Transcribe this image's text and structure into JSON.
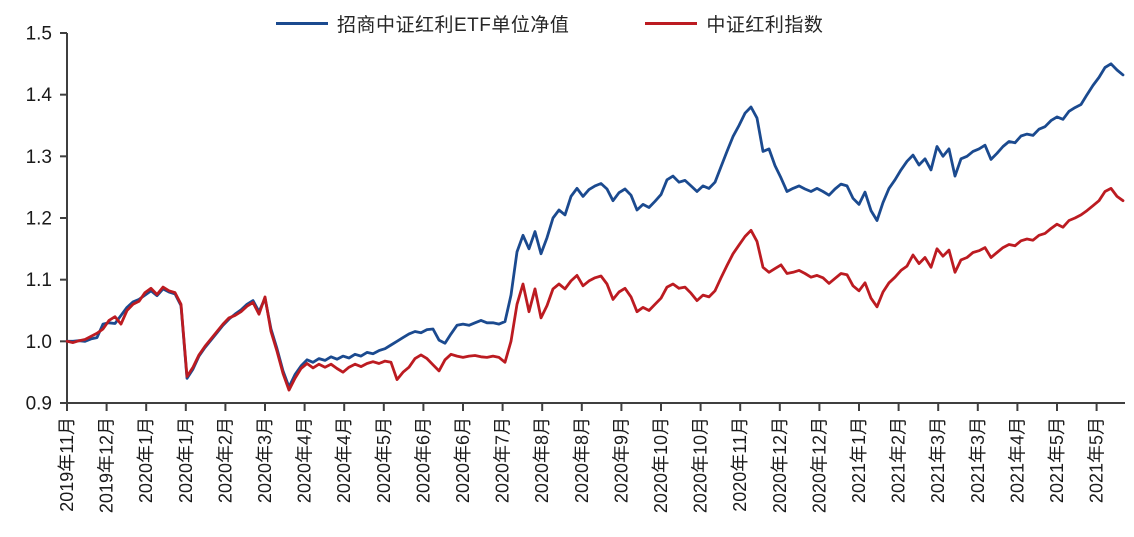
{
  "chart_data": {
    "type": "line",
    "title": "",
    "grid": false,
    "legend_position": "top-center",
    "axis_color": "#3f3f3f",
    "label_color": "#1a1a1a",
    "background": "#ffffff",
    "legend": [
      {
        "label": "招商中证红利ETF单位净值",
        "color": "#1b4a8f"
      },
      {
        "label": "中证红利指数",
        "color": "#bc1b21"
      }
    ],
    "y_axis": {
      "min": 0.9,
      "max": 1.5,
      "tick_labels": [
        "1.5",
        "1.4",
        "1.3",
        "1.2",
        "1.1",
        "1.0",
        "0.9"
      ],
      "tick_values": [
        1.5,
        1.4,
        1.3,
        1.2,
        1.1,
        1.0,
        0.9
      ]
    },
    "x_axis": {
      "tick_labels": [
        "2019年11月",
        "2019年12月",
        "2020年1月",
        "2020年1月",
        "2020年2月",
        "2020年3月",
        "2020年4月",
        "2020年4月",
        "2020年5月",
        "2020年6月",
        "2020年6月",
        "2020年7月",
        "2020年8月",
        "2020年8月",
        "2020年9月",
        "2020年10月",
        "2020年10月",
        "2020年11月",
        "2020年12月",
        "2020年12月",
        "2021年1月",
        "2021年2月",
        "2021年3月",
        "2021年3月",
        "2021年4月",
        "2021年5月",
        "2021年5月"
      ]
    },
    "series": [
      {
        "name": "招商中证红利ETF单位净值",
        "color": "#1b4a8f",
        "values": [
          1.0,
          1.0,
          1.001,
          1.0,
          1.004,
          1.006,
          1.028,
          1.03,
          1.029,
          1.042,
          1.055,
          1.064,
          1.068,
          1.075,
          1.082,
          1.074,
          1.085,
          1.08,
          1.077,
          1.058,
          0.94,
          0.955,
          0.976,
          0.99,
          1.002,
          1.014,
          1.026,
          1.036,
          1.044,
          1.051,
          1.06,
          1.066,
          1.048,
          1.07,
          1.02,
          0.988,
          0.952,
          0.926,
          0.946,
          0.96,
          0.97,
          0.966,
          0.972,
          0.969,
          0.975,
          0.971,
          0.976,
          0.973,
          0.979,
          0.976,
          0.982,
          0.98,
          0.985,
          0.988,
          0.994,
          1.0,
          1.006,
          1.012,
          1.016,
          1.014,
          1.019,
          1.02,
          1.002,
          0.997,
          1.012,
          1.026,
          1.028,
          1.026,
          1.03,
          1.034,
          1.03,
          1.03,
          1.028,
          1.032,
          1.075,
          1.145,
          1.172,
          1.15,
          1.178,
          1.142,
          1.168,
          1.2,
          1.213,
          1.205,
          1.235,
          1.248,
          1.235,
          1.246,
          1.252,
          1.256,
          1.247,
          1.228,
          1.241,
          1.247,
          1.237,
          1.213,
          1.222,
          1.217,
          1.227,
          1.238,
          1.262,
          1.268,
          1.258,
          1.261,
          1.252,
          1.243,
          1.252,
          1.248,
          1.258,
          1.283,
          1.308,
          1.332,
          1.35,
          1.37,
          1.38,
          1.362,
          1.308,
          1.312,
          1.285,
          1.265,
          1.243,
          1.248,
          1.252,
          1.247,
          1.243,
          1.248,
          1.243,
          1.237,
          1.247,
          1.255,
          1.252,
          1.232,
          1.222,
          1.242,
          1.212,
          1.196,
          1.225,
          1.248,
          1.262,
          1.278,
          1.292,
          1.302,
          1.286,
          1.296,
          1.278,
          1.316,
          1.3,
          1.312,
          1.268,
          1.296,
          1.3,
          1.308,
          1.312,
          1.318,
          1.295,
          1.305,
          1.316,
          1.324,
          1.322,
          1.333,
          1.336,
          1.334,
          1.344,
          1.348,
          1.358,
          1.364,
          1.36,
          1.373,
          1.379,
          1.384,
          1.4,
          1.415,
          1.428,
          1.444,
          1.45,
          1.44,
          1.432
        ]
      },
      {
        "name": "中证红利指数",
        "color": "#bc1b21",
        "values": [
          1.0,
          0.998,
          1.001,
          1.003,
          1.008,
          1.013,
          1.02,
          1.034,
          1.04,
          1.028,
          1.05,
          1.06,
          1.065,
          1.079,
          1.086,
          1.076,
          1.088,
          1.082,
          1.079,
          1.06,
          0.943,
          0.958,
          0.978,
          0.992,
          1.004,
          1.016,
          1.028,
          1.038,
          1.042,
          1.048,
          1.057,
          1.063,
          1.044,
          1.072,
          1.016,
          0.984,
          0.948,
          0.921,
          0.94,
          0.956,
          0.964,
          0.957,
          0.963,
          0.958,
          0.963,
          0.956,
          0.95,
          0.958,
          0.963,
          0.959,
          0.964,
          0.967,
          0.964,
          0.968,
          0.966,
          0.938,
          0.95,
          0.958,
          0.972,
          0.978,
          0.972,
          0.962,
          0.952,
          0.97,
          0.979,
          0.976,
          0.974,
          0.976,
          0.977,
          0.975,
          0.974,
          0.976,
          0.974,
          0.966,
          1.0,
          1.06,
          1.093,
          1.048,
          1.085,
          1.038,
          1.058,
          1.085,
          1.093,
          1.085,
          1.098,
          1.107,
          1.09,
          1.098,
          1.103,
          1.106,
          1.093,
          1.068,
          1.08,
          1.086,
          1.072,
          1.048,
          1.055,
          1.05,
          1.06,
          1.07,
          1.088,
          1.093,
          1.086,
          1.088,
          1.078,
          1.066,
          1.075,
          1.072,
          1.082,
          1.103,
          1.123,
          1.142,
          1.156,
          1.17,
          1.18,
          1.162,
          1.12,
          1.112,
          1.118,
          1.124,
          1.11,
          1.112,
          1.115,
          1.11,
          1.104,
          1.107,
          1.103,
          1.094,
          1.102,
          1.11,
          1.108,
          1.09,
          1.082,
          1.095,
          1.07,
          1.056,
          1.08,
          1.095,
          1.104,
          1.115,
          1.122,
          1.14,
          1.126,
          1.136,
          1.12,
          1.15,
          1.138,
          1.148,
          1.112,
          1.132,
          1.136,
          1.144,
          1.147,
          1.152,
          1.136,
          1.144,
          1.152,
          1.157,
          1.155,
          1.163,
          1.166,
          1.164,
          1.172,
          1.175,
          1.183,
          1.19,
          1.185,
          1.196,
          1.2,
          1.205,
          1.212,
          1.22,
          1.228,
          1.243,
          1.248,
          1.235,
          1.228
        ]
      }
    ]
  }
}
